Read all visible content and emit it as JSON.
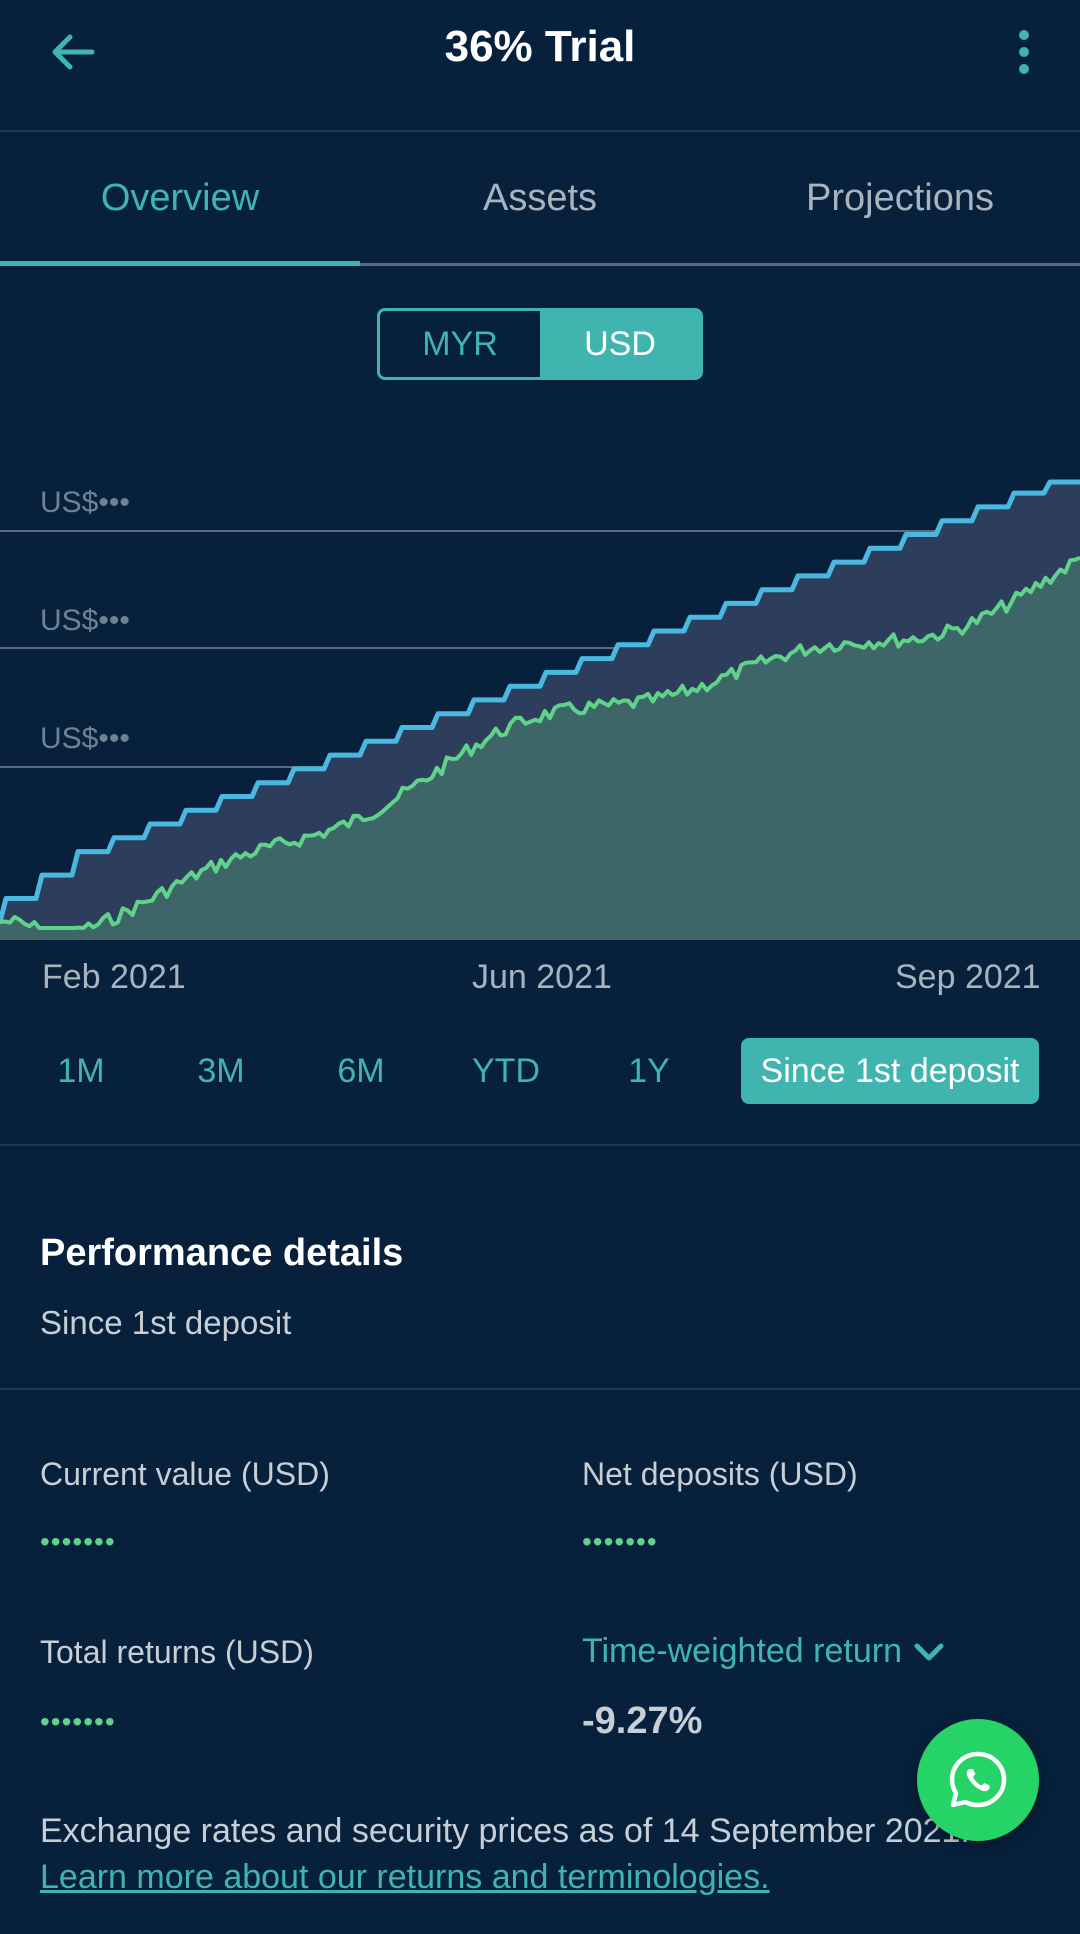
{
  "header": {
    "title": "36% Trial",
    "back_icon": "arrow-left-icon",
    "menu_icon": "more-vertical-icon"
  },
  "tabs": [
    {
      "label": "Overview",
      "active": true
    },
    {
      "label": "Assets",
      "active": false
    },
    {
      "label": "Projections",
      "active": false
    }
  ],
  "currency": {
    "options": [
      "MYR",
      "USD"
    ],
    "selected": "USD"
  },
  "chart_data": {
    "type": "area",
    "y_tick_labels": [
      "US$•••",
      "US$•••",
      "US$•••"
    ],
    "x_tick_labels": [
      "Feb 2021",
      "Jun 2021",
      "Sep 2021"
    ],
    "series": [
      {
        "role": "net-deposits",
        "color": "#4ab8e0"
      },
      {
        "role": "portfolio-value",
        "color": "#5fd38a"
      }
    ],
    "values_hidden": true,
    "grid": true
  },
  "ranges": {
    "options": [
      "1M",
      "3M",
      "6M",
      "YTD",
      "1Y",
      "Since 1st deposit"
    ],
    "selected": "Since 1st deposit"
  },
  "performance": {
    "title": "Performance details",
    "subtitle": "Since 1st deposit",
    "current_value_label": "Current value (USD)",
    "current_value": "•••••••",
    "net_deposits_label": "Net deposits (USD)",
    "net_deposits": "•••••••",
    "total_returns_label": "Total returns (USD)",
    "total_returns": "•••••••",
    "twr_label": "Time-weighted return",
    "twr_value": "-9.27%"
  },
  "footer": {
    "note": "Exchange rates and security prices as of 14 September 2021.",
    "link": "Learn more about our returns and terminologies."
  },
  "colors": {
    "accent": "#40b5b0",
    "background": "#07213d",
    "deposit_line": "#4ab8e0",
    "value_line": "#5fd38a",
    "whatsapp": "#25d366"
  },
  "fab": {
    "icon": "whatsapp-icon"
  }
}
